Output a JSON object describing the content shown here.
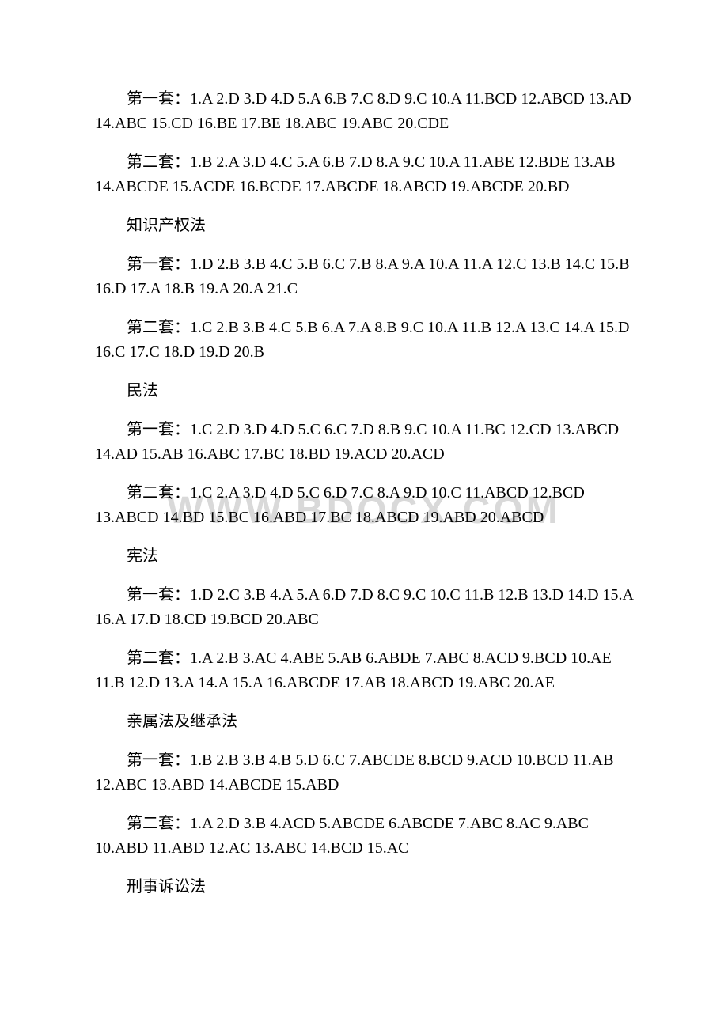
{
  "watermark": "WWW.BDOCX.COM",
  "sections": [
    {
      "type": "paragraph",
      "text": "第一套：1.A 2.D 3.D 4.D 5.A 6.B 7.C 8.D 9.C 10.A 11.BCD 12.ABCD 13.AD 14.ABC 15.CD 16.BE 17.BE 18.ABC 19.ABC 20.CDE"
    },
    {
      "type": "paragraph",
      "text": "第二套：1.B 2.A 3.D 4.C 5.A 6.B 7.D 8.A 9.C 10.A 11.ABE 12.BDE 13.AB 14.ABCDE 15.ACDE 16.BCDE 17.ABCDE 18.ABCD 19.ABCDE 20.BD"
    },
    {
      "type": "heading",
      "text": "知识产权法"
    },
    {
      "type": "paragraph",
      "text": "第一套：1.D 2.B 3.B 4.C 5.B 6.C 7.B 8.A 9.A 10.A 11.A 12.C 13.B 14.C 15.B 16.D 17.A 18.B 19.A 20.A 21.C"
    },
    {
      "type": "paragraph",
      "text": "第二套：1.C 2.B 3.B 4.C 5.B 6.A 7.A 8.B 9.C 10.A 11.B 12.A 13.C 14.A 15.D 16.C 17.C 18.D 19.D 20.B"
    },
    {
      "type": "heading",
      "text": "民法"
    },
    {
      "type": "paragraph",
      "text": "第一套：1.C 2.D 3.D 4.D 5.C 6.C 7.D 8.B 9.C 10.A 11.BC 12.CD 13.ABCD 14.AD 15.AB 16.ABC 17.BC 18.BD 19.ACD 20.ACD"
    },
    {
      "type": "paragraph",
      "text": "第二套：1.C 2.A 3.D 4.D 5.C 6.D 7.C 8.A 9.D 10.C 11.ABCD 12.BCD 13.ABCD 14.BD 15.BC 16.ABD 17.BC 18.ABCD 19.ABD 20.ABCD"
    },
    {
      "type": "heading",
      "text": "宪法"
    },
    {
      "type": "paragraph",
      "text": "第一套：1.D 2.C 3.B 4.A 5.A 6.D 7.D 8.C 9.C 10.C 11.B 12.B 13.D 14.D 15.A 16.A 17.D 18.CD 19.BCD 20.ABC"
    },
    {
      "type": "paragraph",
      "text": "第二套：1.A 2.B 3.AC 4.ABE 5.AB 6.ABDE 7.ABC 8.ACD 9.BCD 10.AE 11.B 12.D 13.A 14.A 15.A 16.ABCDE 17.AB 18.ABCD 19.ABC 20.AE"
    },
    {
      "type": "heading",
      "text": "亲属法及继承法"
    },
    {
      "type": "paragraph",
      "text": "第一套：1.B 2.B 3.B 4.B 5.D 6.C 7.ABCDE 8.BCD 9.ACD 10.BCD 11.AB 12.ABC 13.ABD 14.ABCDE 15.ABD"
    },
    {
      "type": "paragraph",
      "text": "第二套：1.A 2.D 3.B 4.ACD 5.ABCDE 6.ABCDE 7.ABC 8.AC 9.ABC 10.ABD 11.ABD 12.AC 13.ABC 14.BCD 15.AC"
    },
    {
      "type": "heading",
      "text": "刑事诉讼法"
    }
  ]
}
